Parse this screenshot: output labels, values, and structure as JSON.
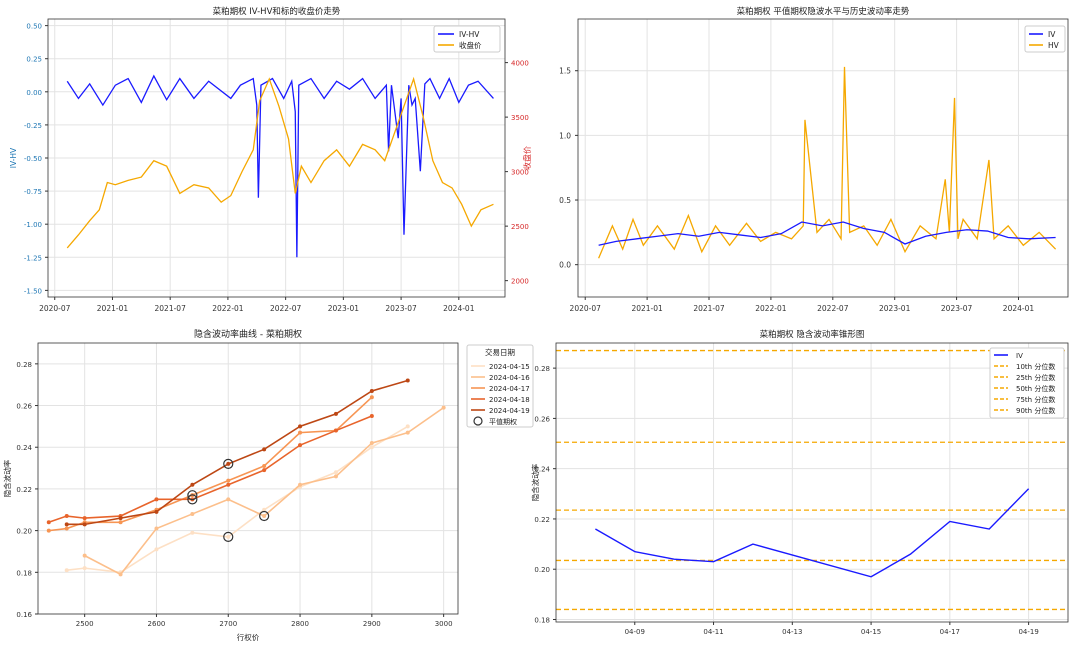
{
  "chart_data": [
    {
      "type": "line",
      "title": "菜粕期权 IV-HV和标的收盘价走势",
      "xlabel": "",
      "ylabel": "IV-HV",
      "y2label": "收盘价",
      "x_ticks": [
        "2020-07",
        "2021-01",
        "2021-07",
        "2022-01",
        "2022-07",
        "2023-01",
        "2023-07",
        "2024-01"
      ],
      "ylim": [
        -1.55,
        0.55
      ],
      "y_ticks": [
        -1.5,
        -1.25,
        -1.0,
        -0.75,
        -0.5,
        -0.25,
        0.0,
        0.25,
        0.5
      ],
      "y2lim": [
        1850,
        4400
      ],
      "y2_ticks": [
        2000,
        2500,
        3000,
        3500,
        4000
      ],
      "grid": true,
      "legend_position": "top-right",
      "series": [
        {
          "name": "IV-HV",
          "color": "#1a1aff",
          "axis": "left",
          "x": [
            "2020-08-10",
            "2020-09-15",
            "2020-10-20",
            "2020-12-01",
            "2021-01-10",
            "2021-02-20",
            "2021-04-01",
            "2021-05-10",
            "2021-06-20",
            "2021-08-01",
            "2021-09-15",
            "2021-11-01",
            "2022-01-10",
            "2022-02-10",
            "2022-03-20",
            "2022-04-01",
            "2022-04-06",
            "2022-04-14",
            "2022-05-20",
            "2022-06-25",
            "2022-07-20",
            "2022-08-01",
            "2022-08-06",
            "2022-08-12",
            "2022-09-20",
            "2022-11-01",
            "2022-12-10",
            "2023-01-20",
            "2023-03-01",
            "2023-04-10",
            "2023-05-15",
            "2023-05-22",
            "2023-06-01",
            "2023-06-22",
            "2023-07-01",
            "2023-07-10",
            "2023-07-25",
            "2023-08-05",
            "2023-08-15",
            "2023-09-01",
            "2023-09-15",
            "2023-10-01",
            "2023-11-01",
            "2023-12-01",
            "2024-01-01",
            "2024-02-01",
            "2024-03-01",
            "2024-04-19"
          ],
          "y": [
            0.08,
            -0.05,
            0.06,
            -0.1,
            0.05,
            0.1,
            -0.08,
            0.12,
            -0.06,
            0.1,
            -0.05,
            0.08,
            -0.05,
            0.05,
            0.1,
            -0.1,
            -0.8,
            0.05,
            0.1,
            -0.05,
            0.08,
            -0.15,
            -1.25,
            0.05,
            0.1,
            -0.05,
            0.08,
            0.02,
            0.1,
            -0.05,
            0.05,
            -0.45,
            0.05,
            -0.35,
            -0.05,
            -1.08,
            0.05,
            -0.1,
            -0.05,
            -0.6,
            0.06,
            0.1,
            -0.05,
            0.1,
            -0.08,
            0.05,
            0.08,
            -0.05
          ]
        },
        {
          "name": "收盘价",
          "color": "#f5a800",
          "axis": "right",
          "x": [
            "2020-08-10",
            "2020-09-15",
            "2020-10-20",
            "2020-11-20",
            "2020-12-15",
            "2021-01-10",
            "2021-02-20",
            "2021-04-01",
            "2021-05-10",
            "2021-06-20",
            "2021-08-01",
            "2021-09-15",
            "2021-11-01",
            "2021-12-10",
            "2022-01-10",
            "2022-02-15",
            "2022-03-20",
            "2022-04-10",
            "2022-05-10",
            "2022-06-10",
            "2022-07-10",
            "2022-08-01",
            "2022-08-20",
            "2022-09-20",
            "2022-11-01",
            "2022-12-10",
            "2023-01-20",
            "2023-03-01",
            "2023-04-10",
            "2023-05-10",
            "2023-06-10",
            "2023-07-10",
            "2023-08-10",
            "2023-09-10",
            "2023-10-10",
            "2023-11-10",
            "2023-12-10",
            "2024-01-10",
            "2024-02-10",
            "2024-03-10",
            "2024-04-19"
          ],
          "y": [
            2300,
            2420,
            2550,
            2650,
            2900,
            2880,
            2920,
            2950,
            3100,
            3050,
            2800,
            2880,
            2850,
            2720,
            2780,
            3000,
            3200,
            3650,
            3850,
            3600,
            3300,
            2800,
            3050,
            2900,
            3100,
            3200,
            3050,
            3250,
            3200,
            3100,
            3350,
            3600,
            3850,
            3500,
            3100,
            2900,
            2850,
            2700,
            2500,
            2650,
            2700
          ]
        }
      ]
    },
    {
      "type": "line",
      "title": "菜粕期权 平值期权隐波水平与历史波动率走势",
      "xlabel": "",
      "ylabel": "",
      "x_ticks": [
        "2020-07",
        "2021-01",
        "2021-07",
        "2022-01",
        "2022-07",
        "2023-01",
        "2023-07",
        "2024-01"
      ],
      "ylim": [
        -0.25,
        1.9
      ],
      "y_ticks": [
        0.0,
        0.5,
        1.0,
        1.5
      ],
      "grid": true,
      "legend_position": "top-right",
      "series": [
        {
          "name": "IV",
          "color": "#1a1aff",
          "x": [
            "2020-08-10",
            "2020-10-01",
            "2020-12-01",
            "2021-02-01",
            "2021-04-01",
            "2021-06-01",
            "2021-08-01",
            "2021-10-01",
            "2021-12-01",
            "2022-02-01",
            "2022-04-01",
            "2022-06-01",
            "2022-08-01",
            "2022-10-01",
            "2022-12-01",
            "2023-02-01",
            "2023-04-01",
            "2023-06-01",
            "2023-08-01",
            "2023-10-01",
            "2023-12-01",
            "2024-02-01",
            "2024-04-19"
          ],
          "y": [
            0.15,
            0.18,
            0.2,
            0.22,
            0.24,
            0.22,
            0.25,
            0.23,
            0.21,
            0.24,
            0.33,
            0.3,
            0.33,
            0.28,
            0.25,
            0.16,
            0.22,
            0.25,
            0.27,
            0.26,
            0.21,
            0.2,
            0.21
          ]
        },
        {
          "name": "HV",
          "color": "#f5a800",
          "x": [
            "2020-08-10",
            "2020-09-20",
            "2020-10-20",
            "2020-11-20",
            "2020-12-20",
            "2021-02-01",
            "2021-03-20",
            "2021-05-01",
            "2021-06-10",
            "2021-07-20",
            "2021-09-01",
            "2021-10-20",
            "2021-12-01",
            "2022-01-15",
            "2022-03-01",
            "2022-04-05",
            "2022-04-10",
            "2022-05-15",
            "2022-06-20",
            "2022-07-25",
            "2022-08-05",
            "2022-08-20",
            "2022-10-01",
            "2022-11-10",
            "2022-12-20",
            "2023-02-01",
            "2023-03-15",
            "2023-05-01",
            "2023-05-28",
            "2023-06-10",
            "2023-06-25",
            "2023-07-05",
            "2023-07-20",
            "2023-09-01",
            "2023-10-05",
            "2023-10-20",
            "2023-12-01",
            "2024-01-15",
            "2024-03-01",
            "2024-04-19"
          ],
          "y": [
            0.05,
            0.3,
            0.12,
            0.35,
            0.15,
            0.3,
            0.12,
            0.38,
            0.1,
            0.3,
            0.15,
            0.32,
            0.18,
            0.25,
            0.2,
            0.3,
            1.12,
            0.25,
            0.35,
            0.2,
            1.53,
            0.25,
            0.3,
            0.15,
            0.35,
            0.1,
            0.3,
            0.2,
            0.66,
            0.25,
            1.29,
            0.2,
            0.35,
            0.2,
            0.81,
            0.2,
            0.3,
            0.15,
            0.25,
            0.12
          ]
        }
      ]
    },
    {
      "type": "line",
      "title": "隐含波动率曲线 - 菜粕期权",
      "xlabel": "行权价",
      "ylabel": "隐含波动率",
      "xlim": [
        2435,
        3020
      ],
      "x_ticks": [
        2500,
        2600,
        2700,
        2800,
        2900,
        3000
      ],
      "ylim": [
        0.16,
        0.29
      ],
      "y_ticks": [
        0.16,
        0.18,
        0.2,
        0.22,
        0.24,
        0.26,
        0.28
      ],
      "grid": true,
      "legend_title": "交易日期",
      "legend_position": "top-right",
      "atm_label": "平值期权",
      "series": [
        {
          "name": "2024-04-15",
          "color": "#fde0c5",
          "x": [
            2475,
            2500,
            2550,
            2600,
            2650,
            2700,
            2750,
            2800,
            2850,
            2900,
            2950
          ],
          "y": [
            0.181,
            0.182,
            0.18,
            0.191,
            0.199,
            0.197,
            0.21,
            0.221,
            0.228,
            0.24,
            0.25
          ],
          "atm": [
            2700,
            0.197
          ]
        },
        {
          "name": "2024-04-16",
          "color": "#fcbf8b",
          "x": [
            2500,
            2550,
            2600,
            2650,
            2700,
            2750,
            2800,
            2850,
            2900,
            2950,
            3000
          ],
          "y": [
            0.188,
            0.179,
            0.201,
            0.208,
            0.215,
            0.207,
            0.222,
            0.226,
            0.242,
            0.247,
            0.259
          ],
          "atm": [
            2750,
            0.207
          ]
        },
        {
          "name": "2024-04-17",
          "color": "#f79553",
          "x": [
            2450,
            2475,
            2500,
            2550,
            2600,
            2650,
            2700,
            2750,
            2800,
            2850,
            2900
          ],
          "y": [
            0.2,
            0.201,
            0.204,
            0.204,
            0.21,
            0.217,
            0.224,
            0.231,
            0.247,
            0.248,
            0.264
          ],
          "atm": [
            2650,
            0.217
          ]
        },
        {
          "name": "2024-04-18",
          "color": "#e8642b",
          "x": [
            2450,
            2475,
            2500,
            2550,
            2600,
            2650,
            2700,
            2750,
            2800,
            2850,
            2900
          ],
          "y": [
            0.204,
            0.207,
            0.206,
            0.207,
            0.215,
            0.215,
            0.222,
            0.229,
            0.241,
            0.248,
            0.255
          ],
          "atm": [
            2650,
            0.215
          ]
        },
        {
          "name": "2024-04-19",
          "color": "#bd4714",
          "x": [
            2475,
            2500,
            2550,
            2600,
            2650,
            2700,
            2750,
            2800,
            2850,
            2900,
            2950
          ],
          "y": [
            0.203,
            0.203,
            0.206,
            0.209,
            0.222,
            0.232,
            0.239,
            0.25,
            0.256,
            0.267,
            0.272
          ],
          "atm": [
            2700,
            0.232
          ]
        }
      ]
    },
    {
      "type": "line",
      "title": "菜粕期权 隐含波动率锥形图",
      "xlabel": "",
      "ylabel": "隐含波动率",
      "x": [
        "04-08",
        "04-09",
        "04-10",
        "04-11",
        "04-12",
        "04-15",
        "04-16",
        "04-17",
        "04-18",
        "04-19"
      ],
      "x_ticks": [
        "04-09",
        "04-11",
        "04-13",
        "04-15",
        "04-17",
        "04-19"
      ],
      "ylim": [
        0.179,
        0.29
      ],
      "y_ticks": [
        0.18,
        0.2,
        0.22,
        0.24,
        0.26,
        0.28
      ],
      "grid": true,
      "legend_position": "top-right",
      "series": [
        {
          "name": "IV",
          "color": "#1a1aff",
          "x": [
            "2024-04-08",
            "2024-04-09",
            "2024-04-10",
            "2024-04-11",
            "2024-04-12",
            "2024-04-15",
            "2024-04-16",
            "2024-04-17",
            "2024-04-18",
            "2024-04-19"
          ],
          "y": [
            0.216,
            0.207,
            0.204,
            0.203,
            0.21,
            0.197,
            0.206,
            0.219,
            0.216,
            0.232
          ]
        }
      ],
      "percentiles": [
        {
          "name": "10th 分位数",
          "value": 0.184
        },
        {
          "name": "25th 分位数",
          "value": 0.2035
        },
        {
          "name": "50th 分位数",
          "value": 0.2235
        },
        {
          "name": "75th 分位数",
          "value": 0.2505
        },
        {
          "name": "90th 分位数",
          "value": 0.287
        }
      ],
      "percentile_color": "#f5a800"
    }
  ]
}
